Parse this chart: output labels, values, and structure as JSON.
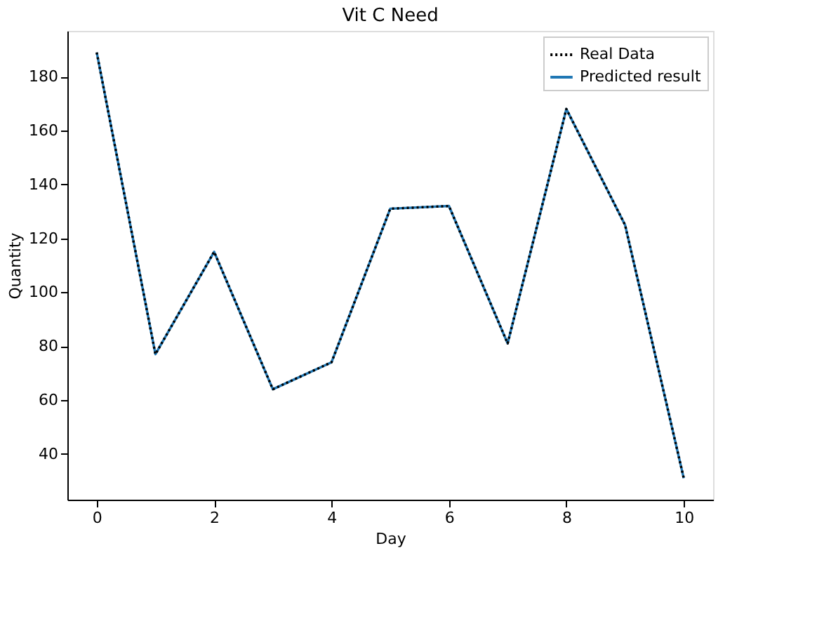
{
  "chart_data": {
    "type": "line",
    "title": "Vit C Need",
    "xlabel": "Day",
    "ylabel": "Quantity",
    "x": [
      0,
      1,
      2,
      3,
      4,
      5,
      6,
      7,
      8,
      9,
      10
    ],
    "series": [
      {
        "name": "Real Data",
        "color": "#000000",
        "line_style": "dotted",
        "values": [
          189,
          77,
          115,
          64,
          74,
          131,
          132,
          81,
          168,
          125,
          31
        ]
      },
      {
        "name": "Predicted result",
        "color": "#1f77b4",
        "line_style": "solid",
        "values": [
          189,
          77,
          115,
          64,
          74,
          131,
          132,
          81,
          168,
          125,
          31
        ]
      }
    ],
    "xlim": [
      -0.5,
      10.5
    ],
    "xticks": [
      0,
      2,
      4,
      6,
      8,
      10
    ],
    "ylim": [
      23,
      197
    ],
    "yticks": [
      40,
      60,
      80,
      100,
      120,
      140,
      160,
      180
    ],
    "grid": false,
    "legend": "top right",
    "marker": "none"
  }
}
